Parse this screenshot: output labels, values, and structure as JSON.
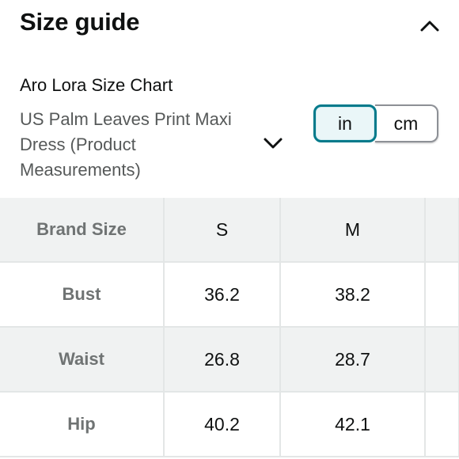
{
  "header": {
    "title": "Size guide",
    "collapse_icon": "chevron-up-icon"
  },
  "chart": {
    "title": "Aro Lora Size Chart",
    "product_name": "US Palm Leaves Print Maxi Dress (Product Measurements)",
    "dropdown_icon": "chevron-down-icon"
  },
  "units": {
    "options": [
      "in",
      "cm"
    ],
    "selected": "in",
    "accent_color": "#017a8b"
  },
  "table": {
    "header_label": "Brand Size",
    "sizes": [
      "S",
      "M",
      ""
    ],
    "rows": [
      {
        "label": "Bust",
        "values": [
          "36.2",
          "38.2",
          ""
        ]
      },
      {
        "label": "Waist",
        "values": [
          "26.8",
          "28.7",
          ""
        ]
      },
      {
        "label": "Hip",
        "values": [
          "40.2",
          "42.1",
          ""
        ]
      }
    ]
  }
}
